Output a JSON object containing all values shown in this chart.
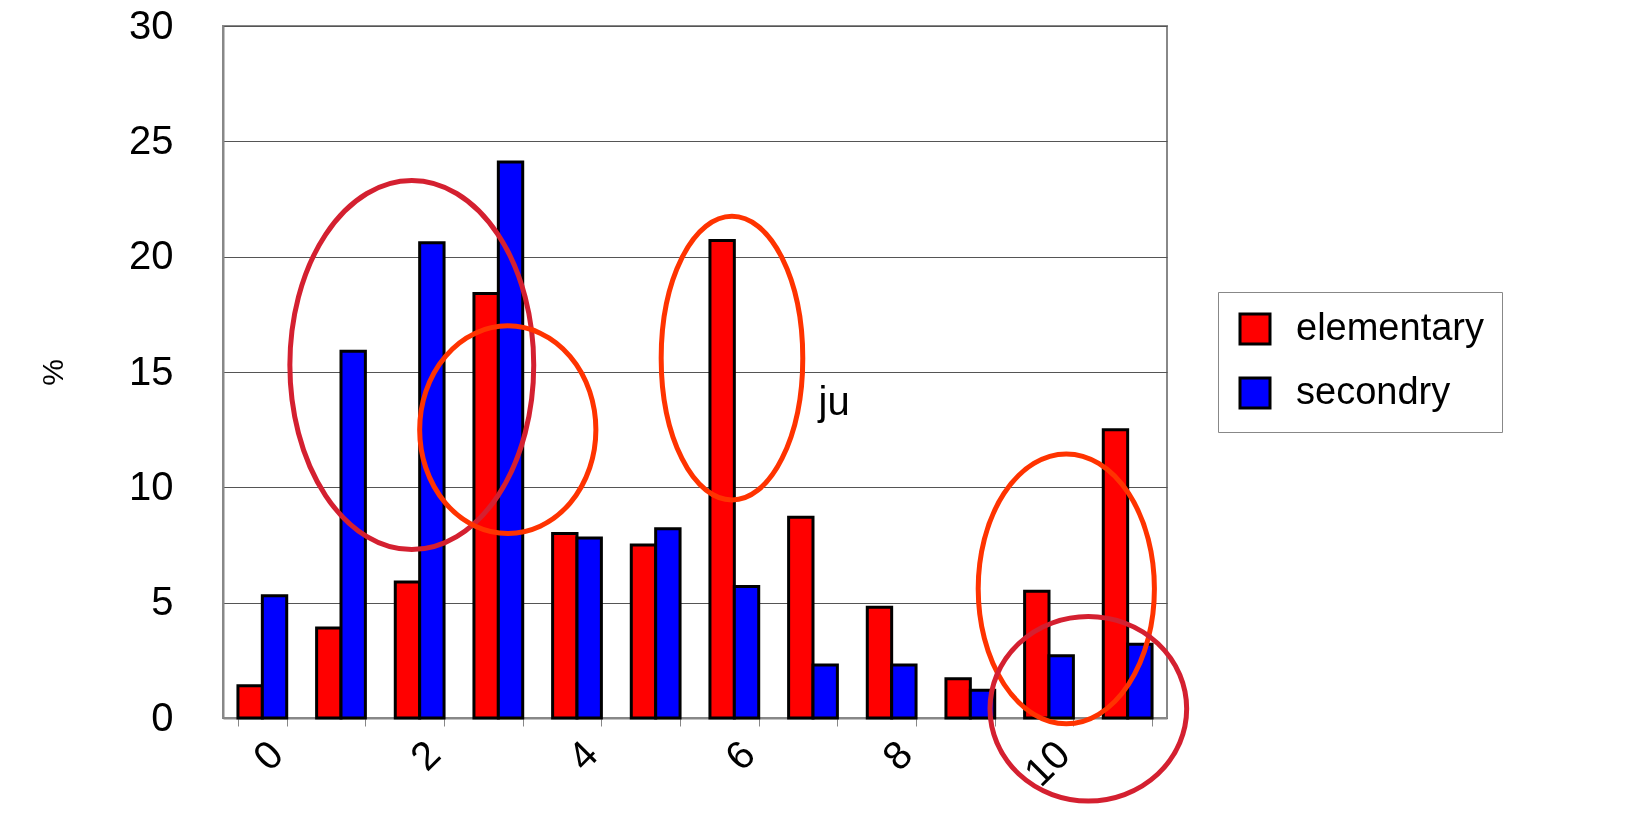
{
  "chart_data": {
    "type": "bar",
    "ylabel": "%",
    "categories": [
      "0",
      null,
      "2",
      null,
      "4",
      null,
      "6",
      null,
      "8",
      null,
      "10",
      null
    ],
    "series": [
      {
        "name": "elementary",
        "color": "#ff0000",
        "values": [
          1.4,
          3.9,
          5.9,
          18.4,
          8.0,
          7.5,
          20.7,
          8.7,
          4.8,
          1.7,
          5.5,
          12.5
        ]
      },
      {
        "name": "secondry",
        "color": "#0000ff",
        "values": [
          5.3,
          15.9,
          20.6,
          24.1,
          7.8,
          8.2,
          5.7,
          2.3,
          2.3,
          1.2,
          2.7,
          3.2
        ]
      }
    ],
    "ylim": [
      0,
      30
    ],
    "yticks": [
      0,
      5,
      10,
      15,
      20,
      25,
      30
    ],
    "grid": "y",
    "legend": "right",
    "annotations": [
      "ju"
    ]
  }
}
